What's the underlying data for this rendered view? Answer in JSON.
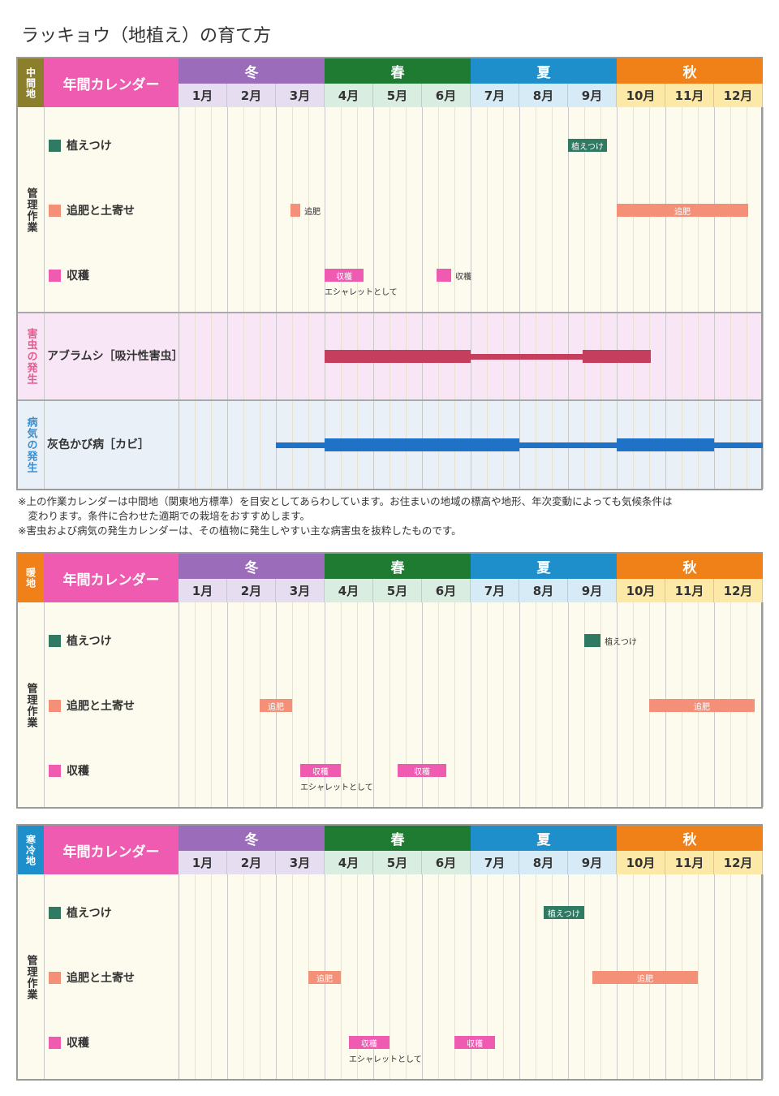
{
  "title": "ラッキョウ（地植え）の育て方",
  "calendar_header": "年間カレンダー",
  "seasons": [
    {
      "label": "冬",
      "color": "#9a6cba"
    },
    {
      "label": "春",
      "color": "#1f7a32"
    },
    {
      "label": "夏",
      "color": "#1f8fcb"
    },
    {
      "label": "秋",
      "color": "#f08018"
    }
  ],
  "months": [
    "1月",
    "2月",
    "3月",
    "4月",
    "5月",
    "6月",
    "7月",
    "8月",
    "9月",
    "10月",
    "11月",
    "12月"
  ],
  "month_bg": [
    "#e6def0",
    "#e6def0",
    "#e6def0",
    "#d9ede0",
    "#d9ede0",
    "#d9ede0",
    "#d7ebf6",
    "#d7ebf6",
    "#d7ebf6",
    "#fce9a8",
    "#fce9a8",
    "#fce9a8"
  ],
  "management_label": "管理作業",
  "tasks": [
    {
      "label": "植えつけ",
      "color": "#2f7a63"
    },
    {
      "label": "追肥と土寄せ",
      "color": "#f48f78"
    },
    {
      "label": "収穫",
      "color": "#ee5bb0"
    }
  ],
  "calendars": [
    {
      "region": "中間地",
      "region_color": "#8b7f2c",
      "rows": [
        [
          {
            "start": 8.0,
            "end": 8.8,
            "text": "植えつけ"
          }
        ],
        [
          {
            "start": 2.3,
            "end": 2.5,
            "text": "",
            "after": "追肥"
          },
          {
            "start": 9.0,
            "end": 11.7,
            "text": "追肥"
          }
        ],
        [
          {
            "start": 3.0,
            "end": 3.8,
            "text": "収穫",
            "below": "エシャレットとして"
          },
          {
            "start": 5.3,
            "end": 5.6,
            "text": "",
            "after": "収穫"
          }
        ]
      ],
      "pest": {
        "section": "害虫の発生",
        "name": "アブラムシ［吸汁性害虫］",
        "color": "#c53e5e",
        "bg": "#f8e6f7",
        "label_color": "#e85b8e",
        "segments": [
          {
            "start": 3.0,
            "end": 6.0,
            "thick": true
          },
          {
            "start": 6.0,
            "end": 8.3,
            "thick": false
          },
          {
            "start": 8.3,
            "end": 9.7,
            "thick": true
          }
        ]
      },
      "disease": {
        "section": "病気の発生",
        "name": "灰色かび病［カビ］",
        "color": "#1f72c6",
        "bg": "#eaf0f7",
        "label_color": "#3a8fd0",
        "segments": [
          {
            "start": 2.0,
            "end": 3.0,
            "thick": false
          },
          {
            "start": 3.0,
            "end": 7.0,
            "thick": true
          },
          {
            "start": 7.0,
            "end": 9.0,
            "thick": false
          },
          {
            "start": 9.0,
            "end": 11.0,
            "thick": true
          },
          {
            "start": 11.0,
            "end": 12.0,
            "thick": false
          }
        ]
      }
    },
    {
      "region": "暖地",
      "region_color": "#f08018",
      "rows": [
        [
          {
            "start": 8.33,
            "end": 8.67,
            "text": "",
            "after": "植えつけ"
          }
        ],
        [
          {
            "start": 1.67,
            "end": 2.33,
            "text": "追肥"
          },
          {
            "start": 9.67,
            "end": 11.83,
            "text": "追肥"
          }
        ],
        [
          {
            "start": 2.5,
            "end": 3.33,
            "text": "収穫",
            "below": "エシャレットとして"
          },
          {
            "start": 4.5,
            "end": 5.5,
            "text": "収穫"
          }
        ]
      ]
    },
    {
      "region": "寒冷地",
      "region_color": "#1f8fcb",
      "rows": [
        [
          {
            "start": 7.5,
            "end": 8.33,
            "text": "植えつけ"
          }
        ],
        [
          {
            "start": 2.67,
            "end": 3.33,
            "text": "追肥"
          },
          {
            "start": 8.5,
            "end": 10.67,
            "text": "追肥"
          }
        ],
        [
          {
            "start": 3.5,
            "end": 4.33,
            "text": "収穫",
            "below": "エシャレットとして"
          },
          {
            "start": 5.67,
            "end": 6.5,
            "text": "収穫"
          }
        ]
      ]
    }
  ],
  "notes": [
    "※上の作業カレンダーは中間地（関東地方標準）を目安としてあらわしています。お住まいの地域の標高や地形、年次変動によっても気候条件は",
    "　変わります。条件に合わせた適期での栽培をおすすめします。",
    "※害虫および病気の発生カレンダーは、その植物に発生しやすい主な病害虫を抜粋したものです。"
  ]
}
